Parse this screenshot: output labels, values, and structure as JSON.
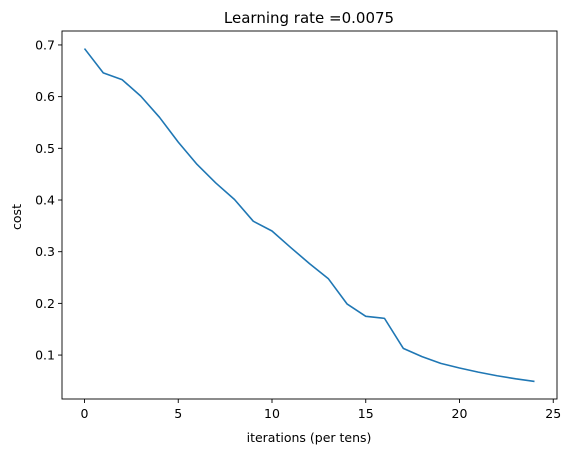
{
  "chart_data": {
    "type": "line",
    "title": "Learning rate =0.0075",
    "xlabel": "iterations (per tens)",
    "ylabel": "cost",
    "xlim": [
      -1.2,
      25.2
    ],
    "ylim": [
      0.015,
      0.727
    ],
    "xticks": [
      0,
      5,
      10,
      15,
      20,
      25
    ],
    "yticks": [
      0.1,
      0.2,
      0.3,
      0.4,
      0.5,
      0.6,
      0.7
    ],
    "xtick_labels": [
      "0",
      "5",
      "10",
      "15",
      "20",
      "25"
    ],
    "ytick_labels": [
      "0.1",
      "0.2",
      "0.3",
      "0.4",
      "0.5",
      "0.6",
      "0.7"
    ],
    "grid": false,
    "legend": "none",
    "series": [
      {
        "color": "#1f77b4",
        "x": [
          0,
          1,
          2,
          3,
          4,
          5,
          6,
          7,
          8,
          9,
          10,
          11,
          12,
          13,
          14,
          15,
          16,
          17,
          18,
          19,
          20,
          21,
          22,
          23,
          24
        ],
        "values": [
          0.693,
          0.646,
          0.633,
          0.601,
          0.56,
          0.512,
          0.469,
          0.433,
          0.401,
          0.359,
          0.34,
          0.308,
          0.277,
          0.248,
          0.199,
          0.175,
          0.171,
          0.113,
          0.097,
          0.084,
          0.075,
          0.067,
          0.06,
          0.054,
          0.049
        ]
      }
    ]
  }
}
